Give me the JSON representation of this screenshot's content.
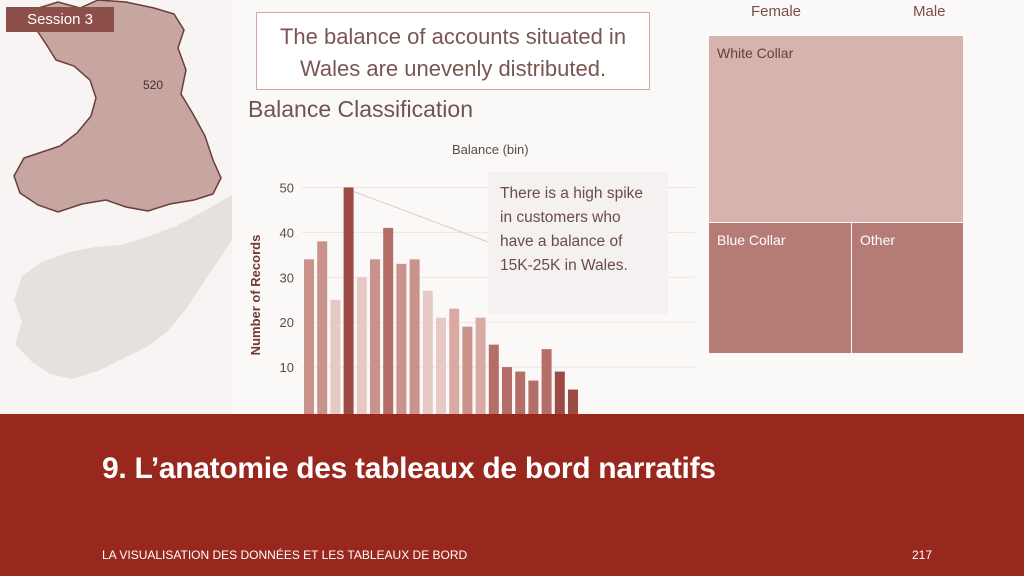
{
  "session": {
    "label": "Session 3"
  },
  "map": {
    "region_value": "520",
    "region_color": "#c7a5a1",
    "background_land_color": "#e6e0de"
  },
  "dashboard": {
    "title": "The balance of accounts situated in Wales are unevenly distributed.",
    "chart_heading": "Balance Classification",
    "annotation": "There is a high spike in customers who have a balance of 15K-25K in Wales."
  },
  "treemap": {
    "columns": [
      "Female",
      "Male"
    ],
    "cells": [
      {
        "label": "White Collar",
        "color": "#d6b3ae"
      },
      {
        "label": "Blue Collar",
        "color": "#b57c75"
      },
      {
        "label": "Other",
        "color": "#b57c75"
      }
    ]
  },
  "chart_data": {
    "type": "bar",
    "xlabel": "Balance (bin)",
    "ylabel": "Number of Records",
    "yticks": [
      10,
      20,
      30,
      40,
      50
    ],
    "ylim": [
      0,
      53
    ],
    "values": [
      34,
      38,
      25,
      50,
      30,
      34,
      41,
      33,
      34,
      27,
      21,
      23,
      19,
      21,
      15,
      10,
      9,
      7,
      14,
      9,
      5
    ],
    "colors": [
      "#c9928b",
      "#c9928b",
      "#e6c9c4",
      "#9b4a44",
      "#e6c9c4",
      "#c9928b",
      "#b56e67",
      "#c9928b",
      "#c9928b",
      "#e6c9c4",
      "#e6c9c4",
      "#d9aaa3",
      "#c9928b",
      "#d9aaa3",
      "#b56e67",
      "#b56e67",
      "#b56e67",
      "#b56e67",
      "#b56e67",
      "#9b4a44",
      "#9b4a44"
    ],
    "grid": true
  },
  "banner": {
    "title": "9. L’anatomie des tableaux de bord narratifs",
    "footer": "LA VISUALISATION DES DONNÉES ET LES TABLEAUX DE BORD",
    "page_number": "217"
  }
}
